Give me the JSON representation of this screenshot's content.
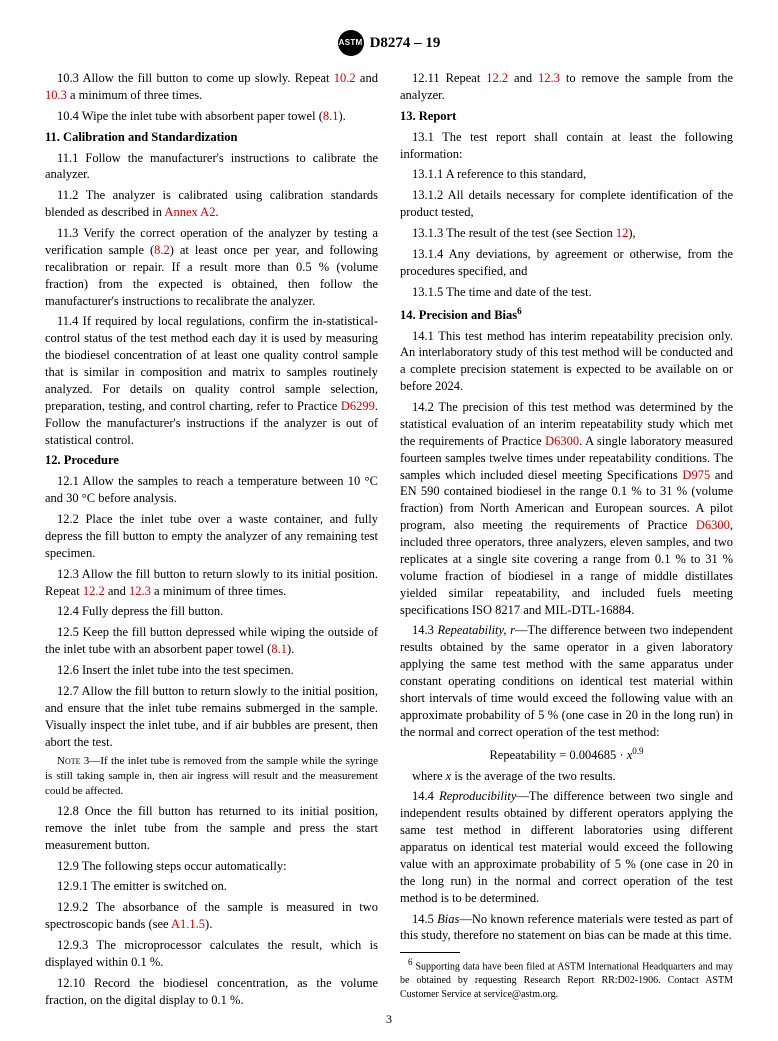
{
  "header": {
    "designation": "D8274 – 19",
    "logo_text": "ASTM"
  },
  "page_number": "3",
  "col": {
    "p10_3": "10.3 Allow the fill button to come up slowly. Repeat ",
    "p10_3_ref1": "10.2",
    "p10_3_mid": " and ",
    "p10_3_ref2": "10.3",
    "p10_3_end": " a minimum of three times.",
    "p10_4a": "10.4 Wipe the inlet tube with absorbent paper towel (",
    "p10_4_ref": "8.1",
    "p10_4b": ").",
    "s11_title": "11. Calibration and Standardization",
    "p11_1": "11.1 Follow the manufacturer's instructions to calibrate the analyzer.",
    "p11_2a": "11.2 The analyzer is calibrated using calibration standards blended as described in ",
    "p11_2_ref": "Annex A2",
    "p11_2b": ".",
    "p11_3a": "11.3 Verify the correct operation of the analyzer by testing a verification sample (",
    "p11_3_ref": "8.2",
    "p11_3b": ") at least once per year, and following recalibration or repair. If a result more than 0.5 % (volume fraction) from the expected is obtained, then follow the manufacturer's instructions to recalibrate the analyzer.",
    "p11_4a": "11.4 If required by local regulations, confirm the in-statistical-control status of the test method each day it is used by measuring the biodiesel concentration of at least one quality control sample that is similar in composition and matrix to samples routinely analyzed. For details on quality control sample selection, preparation, testing, and control charting, refer to Practice ",
    "p11_4_ref": "D6299",
    "p11_4b": ". Follow the manufacturer's instructions if the analyzer is out of statistical control.",
    "s12_title": "12. Procedure",
    "p12_1": "12.1 Allow the samples to reach a temperature between 10 °C and 30 °C before analysis.",
    "p12_2": "12.2 Place the inlet tube over a waste container, and fully depress the fill button to empty the analyzer of any remaining test specimen.",
    "p12_3a": "12.3 Allow the fill button to return slowly to its initial position. Repeat ",
    "p12_3_ref1": "12.2",
    "p12_3_mid": " and ",
    "p12_3_ref2": "12.3",
    "p12_3b": " a minimum of three times.",
    "p12_4": "12.4 Fully depress the fill button.",
    "p12_5a": "12.5 Keep the fill button depressed while wiping the outside of the inlet tube with an absorbent paper towel (",
    "p12_5_ref": "8.1",
    "p12_5b": ").",
    "p12_6": "12.6 Insert the inlet tube into the test specimen.",
    "p12_7": "12.7 Allow the fill button to return slowly to the initial position, and ensure that the inlet tube remains submerged in the sample. Visually inspect the inlet tube, and if air bubbles are present, then abort the test.",
    "note3_label": "Note 3—",
    "note3": "If the inlet tube is removed from the sample while the syringe is still taking sample in, then air ingress will result and the measurement could be affected.",
    "p12_8": "12.8 Once the fill button has returned to its initial position, remove the inlet tube from the sample and press the start measurement button.",
    "p12_9": "12.9 The following steps occur automatically:",
    "p12_9_1": "12.9.1 The emitter is switched on.",
    "p12_9_2a": "12.9.2 The absorbance of the sample is measured in two spectroscopic bands (see ",
    "p12_9_2_ref": "A1.1.5",
    "p12_9_2b": ").",
    "p12_9_3": "12.9.3 The microprocessor calculates the result, which is displayed within 0.1 %.",
    "p12_10": "12.10 Record the biodiesel concentration, as the volume fraction, on the digital display to 0.1 %.",
    "p12_11a": "12.11 Repeat ",
    "p12_11_ref1": "12.2",
    "p12_11_mid": " and ",
    "p12_11_ref2": "12.3",
    "p12_11b": " to remove the sample from the analyzer.",
    "s13_title": "13. Report",
    "p13_1": "13.1 The test report shall contain at least the following information:",
    "p13_1_1": "13.1.1 A reference to this standard,",
    "p13_1_2": "13.1.2 All details necessary for complete identification of the product tested,",
    "p13_1_3a": "13.1.3 The result of the test (see Section ",
    "p13_1_3_ref": "12",
    "p13_1_3b": "),",
    "p13_1_4": "13.1.4 Any deviations, by agreement or otherwise, from the procedures specified, and",
    "p13_1_5": "13.1.5 The time and date of the test.",
    "s14_title_a": "14. Precision and Bias",
    "s14_title_sup": "6",
    "p14_1": "14.1 This test method has interim repeatability precision only. An interlaboratory study of this test method will be conducted and a complete precision statement is expected to be available on or before 2024.",
    "p14_2a": "14.2 The precision of this test method was determined by the statistical evaluation of an interim repeatability study which met the requirements of Practice ",
    "p14_2_ref1": "D6300",
    "p14_2b": ". A single laboratory measured fourteen samples twelve times under repeatability conditions. The samples which included diesel meeting Specifications ",
    "p14_2_ref2": "D975",
    "p14_2c": " and EN 590 contained biodiesel in the range 0.1 % to 31 % (volume fraction) from North American and European sources. A pilot program, also meeting the requirements of Practice ",
    "p14_2_ref3": "D6300",
    "p14_2d": ", included three operators, three analyzers, eleven samples, and two replicates at a single site covering a range from 0.1 % to 31 % volume fraction of biodiesel in a range of middle distillates yielded similar repeatability, and included fuels meeting specifications ISO 8217 and MIL-DTL-16884.",
    "p14_3_label": "Repeatability, r",
    "p14_3": "—The difference between two independent results obtained by the same operator in a given laboratory applying the same test method with the same apparatus under constant operating conditions on identical test material within short intervals of time would exceed the following value with an approximate probability of 5 % (one case in 20 in the long run) in the normal and correct operation of the test method:",
    "p14_3_eq_a": "Repeatability = 0.004685 · ",
    "p14_3_eq_var": "x",
    "p14_3_eq_exp": "0.9",
    "p14_3_where_a": "where ",
    "p14_3_where_var": "x",
    "p14_3_where_b": " is the average of the two results.",
    "p14_4_label": "Reproducibility",
    "p14_4": "—The difference between two single and independent results obtained by different operators applying the same test method in different laboratories using different apparatus on identical test material would exceed the following value with an approximate probability of 5 % (one case in 20 in the long run) in the normal and correct operation of the test method is to be determined.",
    "p14_5_label": "Bias",
    "p14_5": "—No known reference materials were tested as part of this study, therefore no statement on bias can be made at this time.",
    "footnote_sup": "6",
    "footnote": " Supporting data have been filed at ASTM International Headquarters and may be obtained by requesting Research Report RR:D02-1906. Contact ASTM Customer Service at service@astm.org."
  }
}
